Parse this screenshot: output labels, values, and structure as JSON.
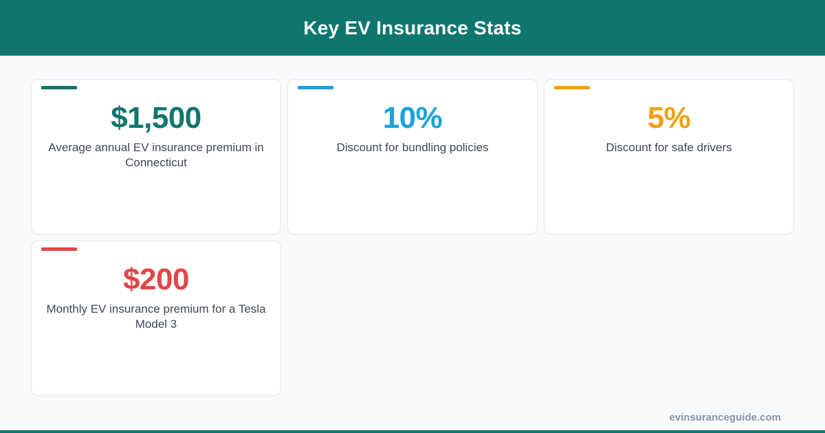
{
  "header": {
    "title": "Key EV Insurance Stats"
  },
  "cards": [
    {
      "value": "$1,500",
      "label": "Average annual EV insurance premium in Connecticut",
      "color": "#0f766e"
    },
    {
      "value": "10%",
      "label": "Discount for bundling policies",
      "color": "#1ba1db"
    },
    {
      "value": "5%",
      "label": "Discount for safe drivers",
      "color": "#f0a012"
    },
    {
      "value": "$200",
      "label": "Monthly EV insurance premium for a Tesla Model 3",
      "color": "#e34545"
    }
  ],
  "footer": {
    "url": "evinsuranceguide.com",
    "bar_color": "#0f766e"
  }
}
